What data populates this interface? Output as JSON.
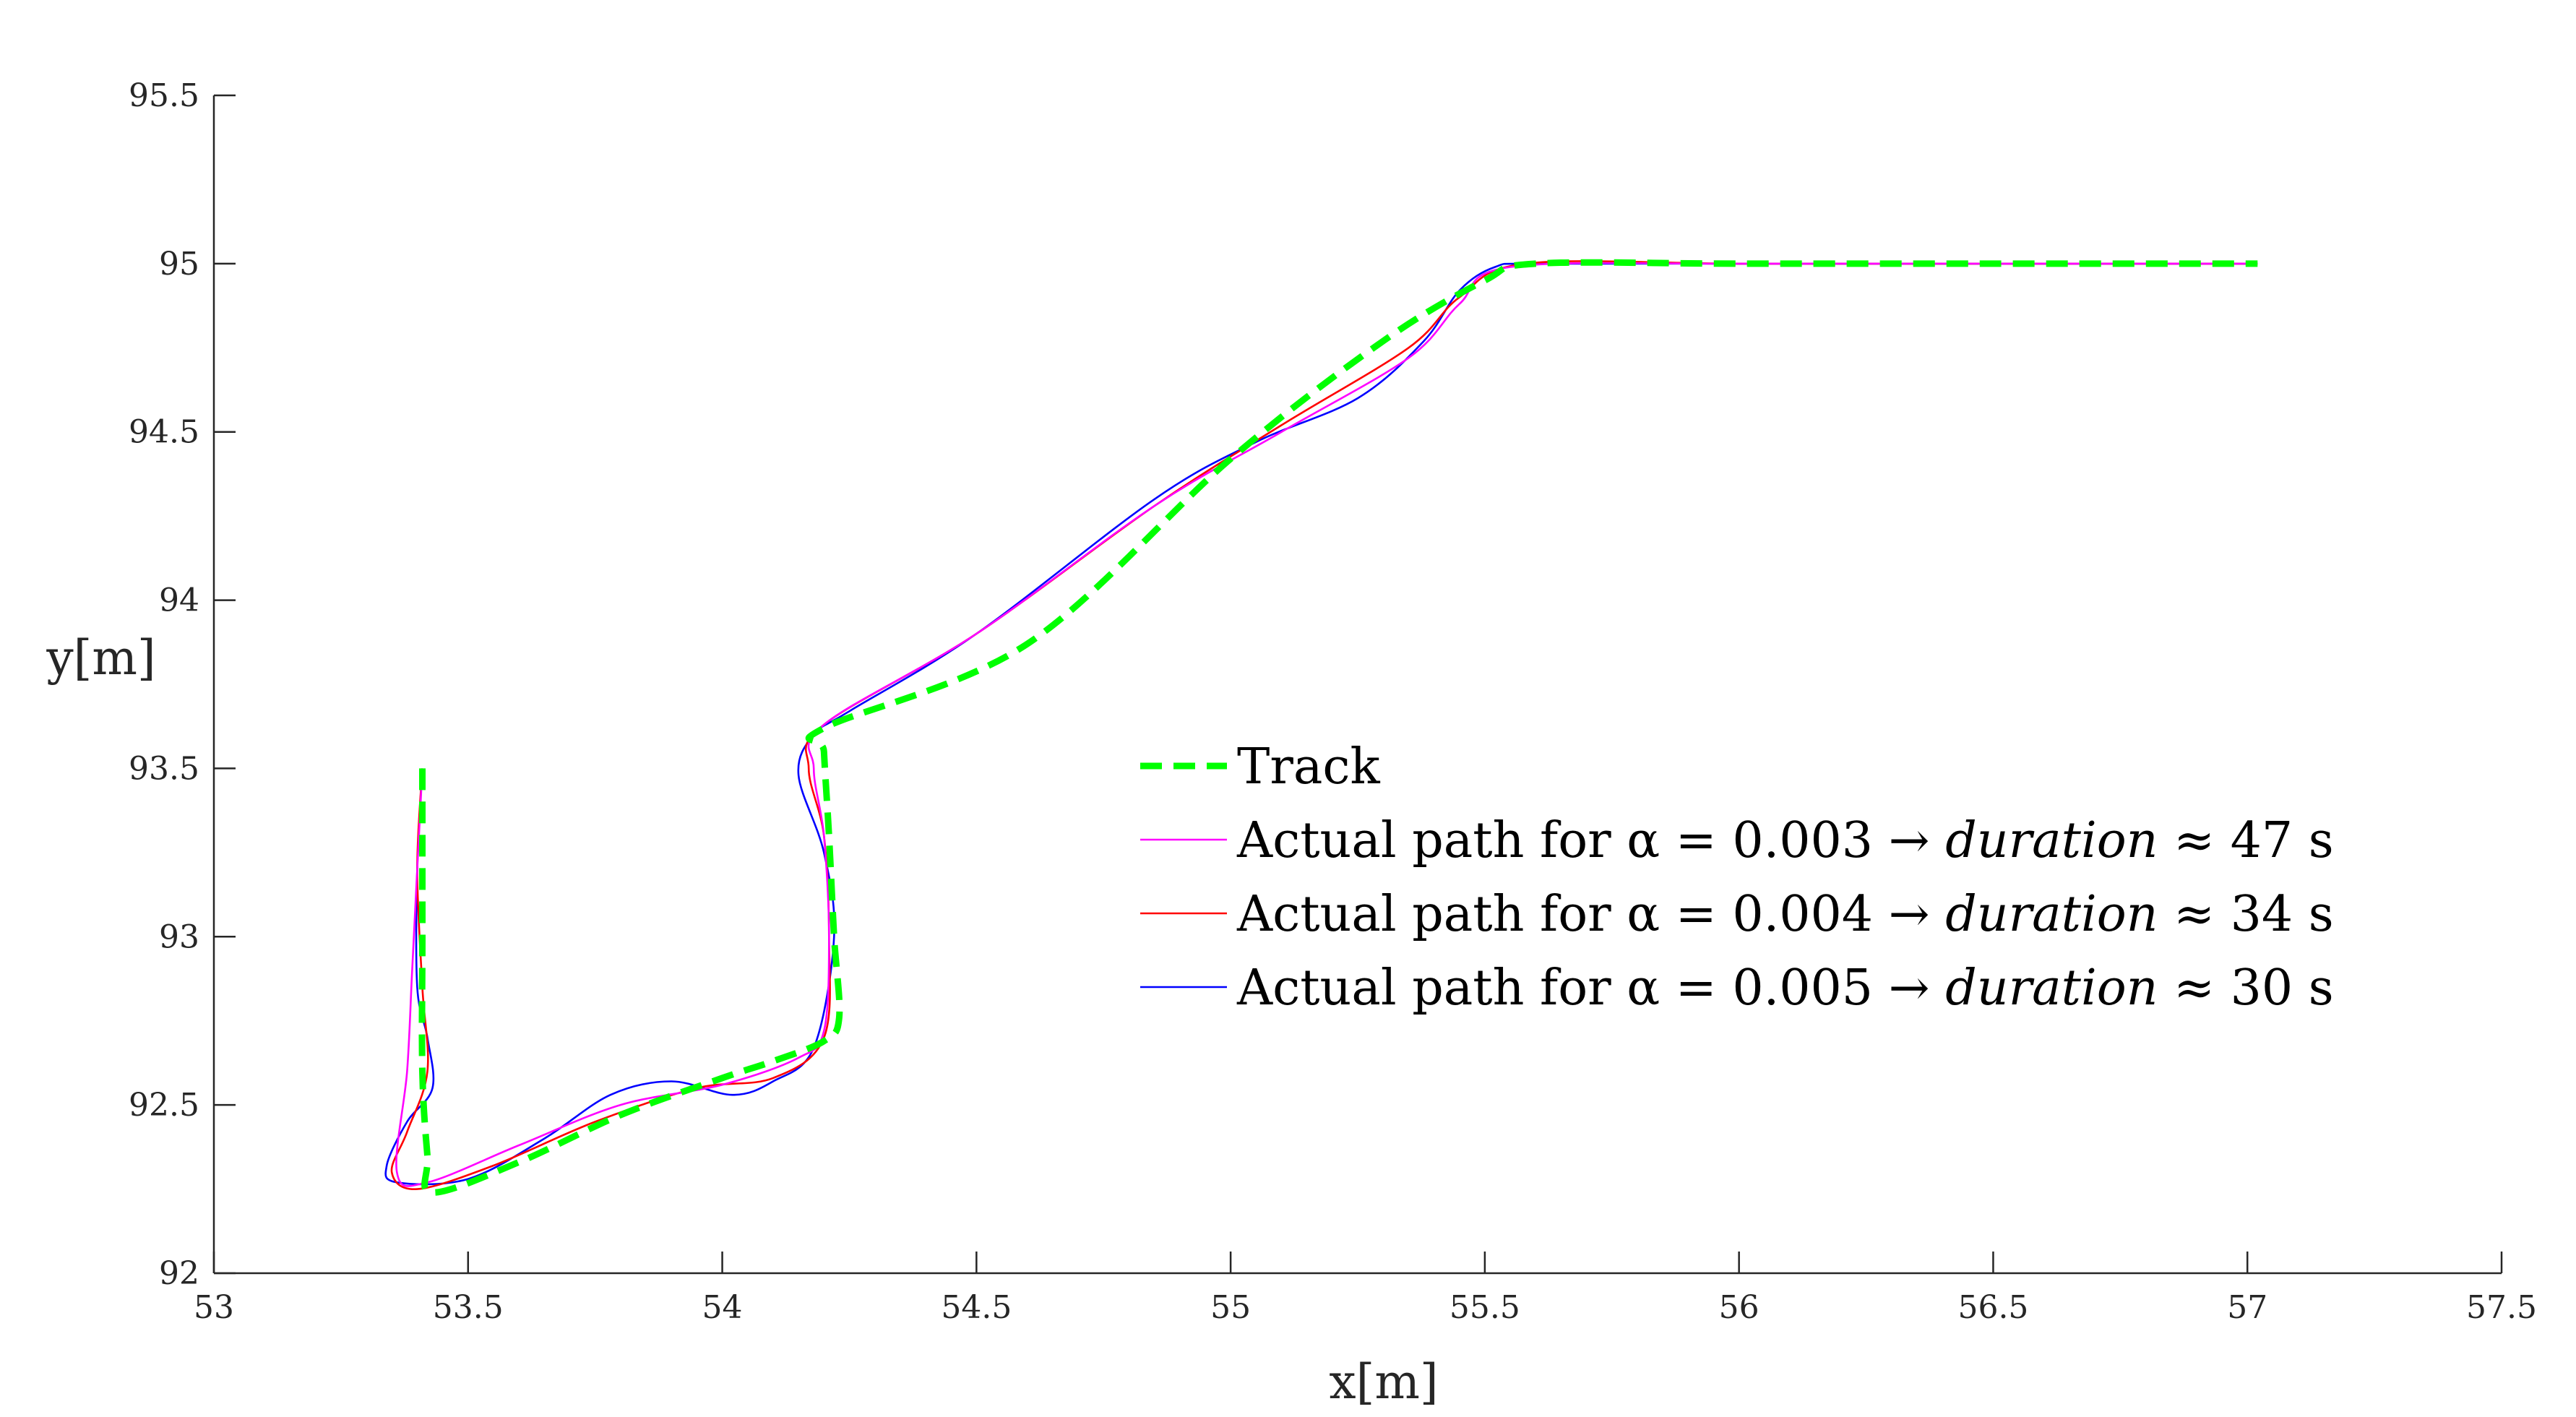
{
  "chart_data": {
    "type": "line",
    "xlabel": "x[m]",
    "ylabel": "y[m]",
    "xlim": [
      53,
      57.5
    ],
    "ylim": [
      92,
      95.5
    ],
    "xticks": [
      53,
      53.5,
      54,
      54.5,
      55,
      55.5,
      56,
      56.5,
      57,
      57.5
    ],
    "yticks": [
      92,
      92.5,
      93,
      93.5,
      94,
      94.5,
      95,
      95.5
    ],
    "xtick_labels": [
      "53",
      "53.5",
      "54",
      "54.5",
      "55",
      "55.5",
      "56",
      "56.5",
      "57",
      "57.5"
    ],
    "ytick_labels": [
      "92",
      "92.5",
      "93",
      "93.5",
      "94",
      "94.5",
      "95",
      "95.5"
    ],
    "grid": false,
    "legend_position": "center-right",
    "series": [
      {
        "name": "Track",
        "color": "#00ff00",
        "style": "dashed",
        "x": [
          53.41,
          53.41,
          53.41,
          53.42,
          53.43,
          53.6,
          53.8,
          54.0,
          54.1,
          54.2,
          54.23,
          54.22,
          54.21,
          54.2,
          54.2,
          54.6,
          55.0,
          55.3,
          55.5,
          55.6,
          56.0,
          56.5,
          57.02
        ],
        "y": [
          93.5,
          93.0,
          92.6,
          92.35,
          92.24,
          92.33,
          92.47,
          92.58,
          92.63,
          92.69,
          92.76,
          93.0,
          93.3,
          93.55,
          93.62,
          93.87,
          94.42,
          94.77,
          94.95,
          95.0,
          95.0,
          95.0,
          95.0
        ]
      },
      {
        "name": "Actual path for α = 0.003 → duration ≈ 47 s",
        "legend_prefix": "Actual path for α = 0.003 → ",
        "legend_italic": "duration",
        "legend_suffix": " ≈ 47 s",
        "color": "#ff00ff",
        "x": [
          53.41,
          53.4,
          53.39,
          53.38,
          53.36,
          53.42,
          53.6,
          53.8,
          54.0,
          54.15,
          54.2,
          54.21,
          54.2,
          54.18,
          54.2,
          54.5,
          54.85,
          55.1,
          55.35,
          55.45,
          55.55,
          56.0,
          56.5,
          57.02
        ],
        "y": [
          93.5,
          93.2,
          92.9,
          92.6,
          92.3,
          92.27,
          92.38,
          92.5,
          92.56,
          92.64,
          92.72,
          93.0,
          93.3,
          93.5,
          93.63,
          93.9,
          94.28,
          94.5,
          94.72,
          94.88,
          94.99,
          95.0,
          95.0,
          95.0
        ]
      },
      {
        "name": "Actual path for α = 0.004 → duration ≈ 34 s",
        "legend_prefix": "Actual path for α = 0.004 → ",
        "legend_italic": "duration",
        "legend_suffix": " ≈ 34 s",
        "color": "#ff0000",
        "x": [
          53.41,
          53.4,
          53.41,
          53.42,
          53.38,
          53.35,
          53.4,
          53.55,
          53.75,
          53.95,
          54.1,
          54.2,
          54.21,
          54.2,
          54.17,
          54.2,
          54.5,
          54.85,
          55.1,
          55.35,
          55.45,
          55.58,
          56.0,
          56.5,
          57.02
        ],
        "y": [
          93.5,
          93.2,
          92.85,
          92.6,
          92.42,
          92.3,
          92.25,
          92.32,
          92.45,
          92.55,
          92.58,
          92.7,
          93.0,
          93.3,
          93.5,
          93.63,
          93.9,
          94.28,
          94.52,
          94.75,
          94.9,
          95.0,
          95.0,
          95.0,
          95.0
        ]
      },
      {
        "name": "Actual path for α = 0.005 → duration ≈ 30 s",
        "legend_prefix": "Actual path for α = 0.005 → ",
        "legend_italic": "duration",
        "legend_suffix": " ≈ 30 s",
        "color": "#0000ff",
        "x": [
          53.41,
          53.4,
          53.4,
          53.42,
          53.43,
          53.38,
          53.34,
          53.36,
          53.5,
          53.65,
          53.78,
          53.9,
          54.02,
          54.1,
          54.18,
          54.22,
          54.2,
          54.15,
          54.18,
          54.25,
          54.5,
          54.85,
          55.05,
          55.25,
          55.38,
          55.45,
          55.52,
          55.6,
          56.0,
          56.5,
          57.02
        ],
        "y": [
          93.5,
          93.2,
          92.85,
          92.7,
          92.55,
          92.45,
          92.32,
          92.27,
          92.28,
          92.4,
          92.53,
          92.57,
          92.53,
          92.57,
          92.67,
          93.0,
          93.25,
          93.48,
          93.6,
          93.67,
          93.9,
          94.3,
          94.47,
          94.6,
          94.77,
          94.92,
          94.99,
          95.0,
          95.0,
          95.0,
          95.0
        ]
      }
    ]
  }
}
